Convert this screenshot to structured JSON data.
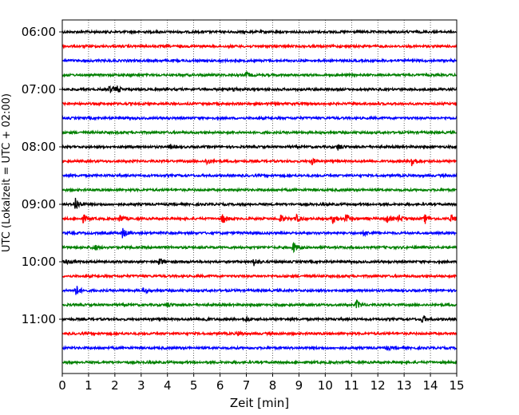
{
  "chart_data": {
    "type": "line",
    "title": "",
    "xlabel": "Zeit  [min]",
    "ylabel": "UTC (Lokalzeit = UTC + 02:00)",
    "xlim": [
      0,
      15
    ],
    "x_ticks": [
      "0",
      "1",
      "2",
      "3",
      "4",
      "5",
      "6",
      "7",
      "8",
      "9",
      "10",
      "11",
      "12",
      "13",
      "14",
      "15"
    ],
    "y_ticks": [
      "06:00",
      "07:00",
      "08:00",
      "09:00",
      "10:00",
      "11:00"
    ],
    "grid": "vertical-dotted",
    "trace_interval_min": 15,
    "trace_colors": [
      "#000000",
      "#ff0000",
      "#0000ff",
      "#008000"
    ],
    "series": [
      {
        "start": "06:00",
        "color": "#000000",
        "events": []
      },
      {
        "start": "06:15",
        "color": "#ff0000",
        "events": []
      },
      {
        "start": "06:30",
        "color": "#0000ff",
        "events": []
      },
      {
        "start": "06:45",
        "color": "#008000",
        "events": [
          {
            "t": 7.0,
            "amp": 0.4
          }
        ]
      },
      {
        "start": "07:00",
        "color": "#000000",
        "events": [
          {
            "t": 1.8,
            "amp": 0.5
          },
          {
            "t": 2.1,
            "amp": 0.4
          },
          {
            "t": 6.5,
            "amp": 0.3
          }
        ]
      },
      {
        "start": "07:15",
        "color": "#ff0000",
        "events": []
      },
      {
        "start": "07:30",
        "color": "#0000ff",
        "events": []
      },
      {
        "start": "07:45",
        "color": "#008000",
        "events": []
      },
      {
        "start": "08:00",
        "color": "#000000",
        "events": [
          {
            "t": 4.1,
            "amp": 0.3
          },
          {
            "t": 10.5,
            "amp": 0.45
          }
        ]
      },
      {
        "start": "08:15",
        "color": "#ff0000",
        "events": [
          {
            "t": 5.5,
            "amp": 0.4
          },
          {
            "t": 9.5,
            "amp": 0.4
          },
          {
            "t": 13.3,
            "amp": 0.9
          }
        ]
      },
      {
        "start": "08:30",
        "color": "#0000ff",
        "events": []
      },
      {
        "start": "08:45",
        "color": "#008000",
        "events": []
      },
      {
        "start": "09:00",
        "color": "#000000",
        "events": [
          {
            "t": 0.5,
            "amp": 1.1
          }
        ]
      },
      {
        "start": "09:15",
        "color": "#ff0000",
        "events": [
          {
            "t": 0.8,
            "amp": 0.5
          },
          {
            "t": 2.2,
            "amp": 0.5
          },
          {
            "t": 6.1,
            "amp": 0.7
          },
          {
            "t": 8.3,
            "amp": 0.5
          },
          {
            "t": 8.9,
            "amp": 0.5
          },
          {
            "t": 10.3,
            "amp": 0.7
          },
          {
            "t": 10.8,
            "amp": 0.7
          },
          {
            "t": 12.3,
            "amp": 0.6
          },
          {
            "t": 12.8,
            "amp": 0.5
          },
          {
            "t": 13.8,
            "amp": 0.6
          },
          {
            "t": 14.8,
            "amp": 0.6
          }
        ]
      },
      {
        "start": "09:30",
        "color": "#0000ff",
        "events": [
          {
            "t": 2.3,
            "amp": 0.7
          },
          {
            "t": 11.5,
            "amp": 0.4
          }
        ]
      },
      {
        "start": "09:45",
        "color": "#008000",
        "events": [
          {
            "t": 1.2,
            "amp": 0.4
          },
          {
            "t": 8.8,
            "amp": 0.7
          }
        ]
      },
      {
        "start": "10:00",
        "color": "#000000",
        "events": [
          {
            "t": 0.1,
            "amp": 0.4
          },
          {
            "t": 3.7,
            "amp": 0.5
          },
          {
            "t": 7.3,
            "amp": 0.6
          }
        ]
      },
      {
        "start": "10:15",
        "color": "#ff0000",
        "events": []
      },
      {
        "start": "10:30",
        "color": "#0000ff",
        "events": [
          {
            "t": 0.5,
            "amp": 0.9
          },
          {
            "t": 3.1,
            "amp": 0.4
          }
        ]
      },
      {
        "start": "10:45",
        "color": "#008000",
        "events": [
          {
            "t": 4.0,
            "amp": 0.3
          },
          {
            "t": 11.2,
            "amp": 0.6
          }
        ]
      },
      {
        "start": "11:00",
        "color": "#000000",
        "events": [
          {
            "t": 5.4,
            "amp": 0.3
          },
          {
            "t": 7.0,
            "amp": 0.3
          },
          {
            "t": 13.7,
            "amp": 0.6
          }
        ]
      },
      {
        "start": "11:15",
        "color": "#ff0000",
        "events": [
          {
            "t": 6.7,
            "amp": 0.3
          }
        ]
      },
      {
        "start": "11:30",
        "color": "#0000ff",
        "events": [
          {
            "t": 12.3,
            "amp": 0.3
          }
        ]
      },
      {
        "start": "11:45",
        "color": "#008000",
        "events": []
      }
    ]
  }
}
